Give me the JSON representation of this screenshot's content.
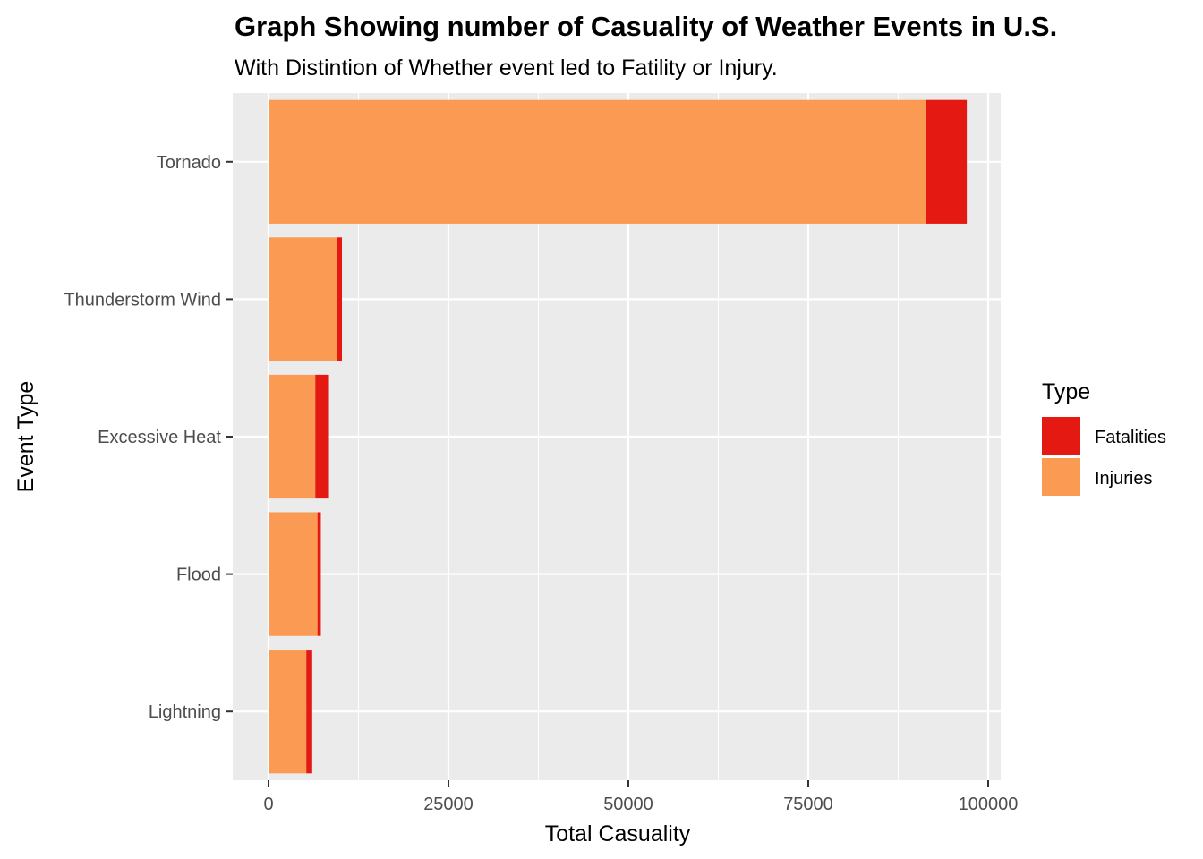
{
  "chart_data": {
    "type": "bar",
    "orientation": "horizontal",
    "stacked": true,
    "title": "Graph Showing number of Casuality of Weather Events in U.S.",
    "subtitle": "With Distintion of Whether event led to Fatility or Injury.",
    "xlabel": "Total Casuality",
    "ylabel": "Event Type",
    "xlim": [
      0,
      100000
    ],
    "x_ticks": [
      0,
      25000,
      50000,
      75000,
      100000
    ],
    "x_tick_labels": [
      "0",
      "25000",
      "50000",
      "75000",
      "100000"
    ],
    "grid": true,
    "categories": [
      "Tornado",
      "Thunderstorm Wind",
      "Excessive Heat",
      "Flood",
      "Lightning"
    ],
    "series": [
      {
        "name": "Injuries",
        "color": "#fb9a53",
        "values": [
          91400,
          9500,
          6500,
          6800,
          5250
        ]
      },
      {
        "name": "Fatalities",
        "color": "#e41a12",
        "values": [
          5630,
          700,
          1900,
          470,
          820
        ]
      }
    ],
    "legend": {
      "title": "Type",
      "position": "right",
      "entries": [
        {
          "label": "Fatalities",
          "color": "#e41a12"
        },
        {
          "label": "Injuries",
          "color": "#fb9a53"
        }
      ]
    }
  }
}
